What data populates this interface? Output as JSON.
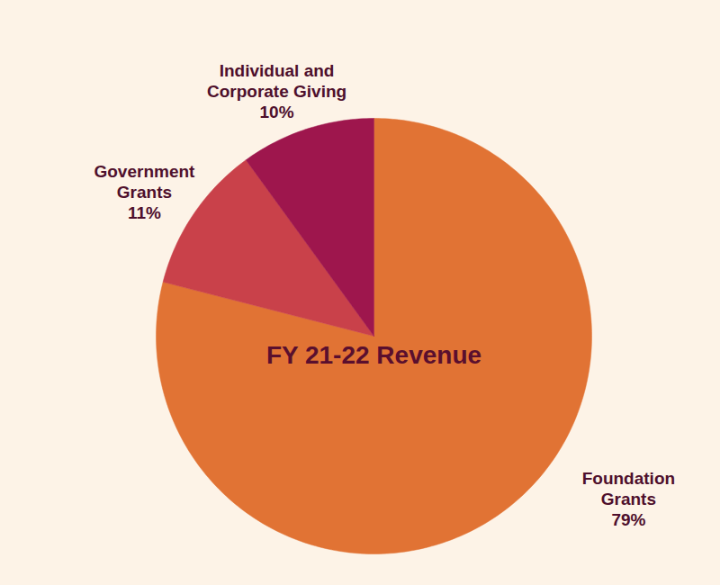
{
  "chart_data": {
    "type": "pie",
    "title": "FY 21-22 Revenue",
    "categories": [
      "Foundation Grants",
      "Government Grants",
      "Individual and Corporate Giving"
    ],
    "values": [
      79,
      11,
      10
    ],
    "value_labels": [
      "79%",
      "11%",
      "10%"
    ],
    "colors": [
      "#e17334",
      "#c9414a",
      "#9e164d"
    ],
    "data_labels": true
  }
}
